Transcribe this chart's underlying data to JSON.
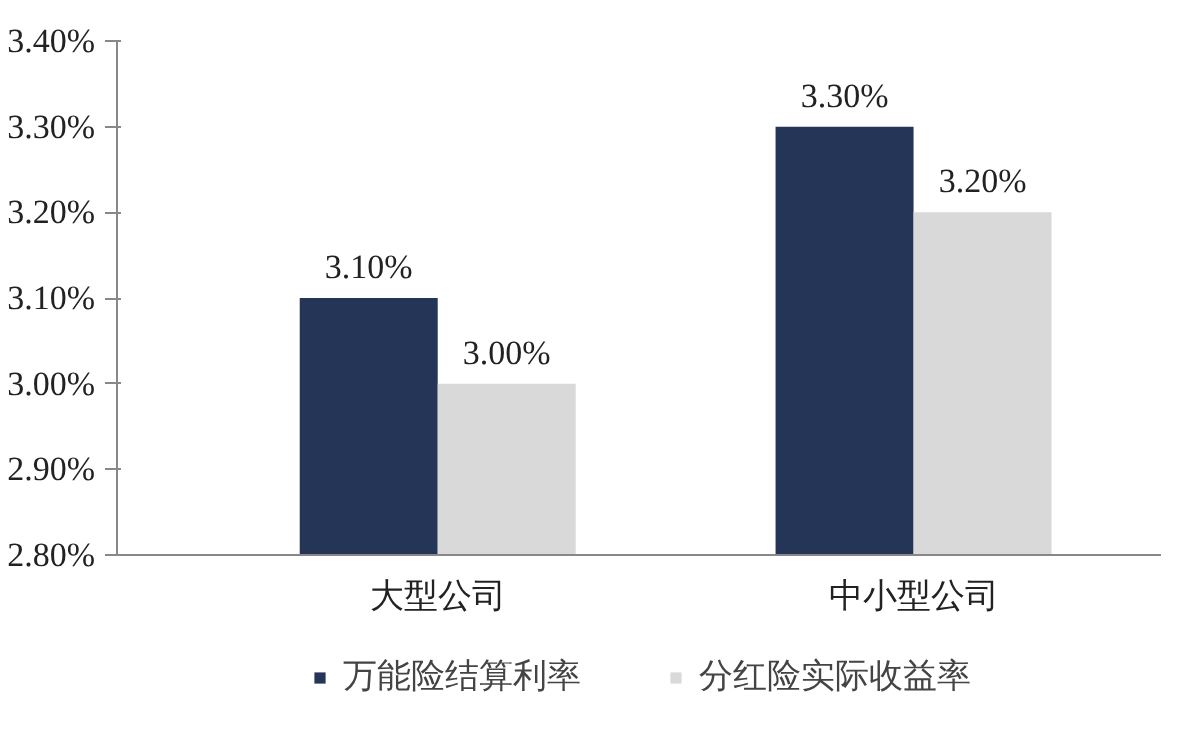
{
  "chart_data": {
    "type": "bar",
    "categories": [
      "大型公司",
      "中小型公司"
    ],
    "series": [
      {
        "name": "万能险结算利率",
        "color": "#243558",
        "values": [
          3.1,
          3.3
        ],
        "value_labels": [
          "3.10%",
          "3.30%"
        ]
      },
      {
        "name": "分红险实际收益率",
        "color": "#d9d9d9",
        "values": [
          3.0,
          3.2
        ],
        "value_labels": [
          "3.00%",
          "3.20%"
        ]
      }
    ],
    "ylim": [
      2.8,
      3.4
    ],
    "yticks": [
      {
        "value": 2.8,
        "label": "2.80%"
      },
      {
        "value": 2.9,
        "label": "2.90%"
      },
      {
        "value": 3.0,
        "label": "3.00%"
      },
      {
        "value": 3.1,
        "label": "3.10%"
      },
      {
        "value": 3.2,
        "label": "3.20%"
      },
      {
        "value": 3.3,
        "label": "3.30%"
      },
      {
        "value": 3.4,
        "label": "3.40%"
      }
    ],
    "grid": false,
    "legend": "bottom"
  }
}
